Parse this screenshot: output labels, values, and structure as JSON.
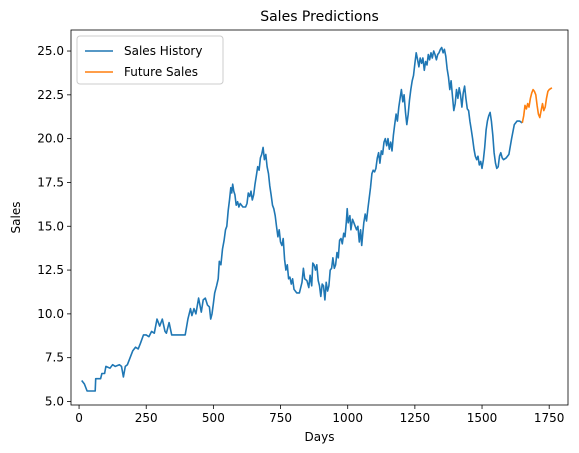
{
  "chart_data": {
    "type": "line",
    "title": "Sales Predictions",
    "xlabel": "Days",
    "ylabel": "Sales",
    "xlim": [
      -30,
      1820
    ],
    "ylim": [
      4.8,
      26.2
    ],
    "xticks": [
      0,
      250,
      500,
      750,
      1000,
      1250,
      1500,
      1750
    ],
    "yticks": [
      5.0,
      7.5,
      10.0,
      12.5,
      15.0,
      17.5,
      20.0,
      22.5,
      25.0
    ],
    "grid": false,
    "legend_position": "top-left",
    "series": [
      {
        "name": "Sales History",
        "color": "#1f77b4",
        "points": [
          [
            10,
            6.2
          ],
          [
            20,
            6.0
          ],
          [
            30,
            5.6
          ],
          [
            60,
            5.6
          ],
          [
            62,
            6.3
          ],
          [
            80,
            6.3
          ],
          [
            85,
            6.6
          ],
          [
            95,
            6.6
          ],
          [
            100,
            7.0
          ],
          [
            115,
            6.9
          ],
          [
            125,
            7.1
          ],
          [
            135,
            7.0
          ],
          [
            150,
            7.1
          ],
          [
            158,
            7.0
          ],
          [
            165,
            6.4
          ],
          [
            172,
            7.0
          ],
          [
            180,
            7.1
          ],
          [
            190,
            7.5
          ],
          [
            200,
            7.9
          ],
          [
            210,
            8.1
          ],
          [
            220,
            8.0
          ],
          [
            228,
            8.3
          ],
          [
            240,
            8.8
          ],
          [
            250,
            8.8
          ],
          [
            260,
            8.7
          ],
          [
            270,
            9.0
          ],
          [
            280,
            8.9
          ],
          [
            290,
            9.7
          ],
          [
            300,
            9.3
          ],
          [
            310,
            9.7
          ],
          [
            320,
            9.0
          ],
          [
            325,
            8.9
          ],
          [
            335,
            9.5
          ],
          [
            345,
            8.8
          ],
          [
            360,
            8.8
          ],
          [
            380,
            8.8
          ],
          [
            395,
            8.8
          ],
          [
            405,
            9.7
          ],
          [
            415,
            10.3
          ],
          [
            420,
            9.9
          ],
          [
            428,
            10.3
          ],
          [
            435,
            10.0
          ],
          [
            445,
            10.9
          ],
          [
            455,
            10.1
          ],
          [
            462,
            10.8
          ],
          [
            470,
            10.9
          ],
          [
            478,
            10.5
          ],
          [
            485,
            10.4
          ],
          [
            490,
            9.7
          ],
          [
            495,
            10.0
          ],
          [
            500,
            10.6
          ],
          [
            505,
            11.2
          ],
          [
            512,
            11.6
          ],
          [
            518,
            12.0
          ],
          [
            522,
            13.0
          ],
          [
            528,
            12.8
          ],
          [
            534,
            13.7
          ],
          [
            540,
            14.2
          ],
          [
            545,
            14.8
          ],
          [
            550,
            15.0
          ],
          [
            555,
            15.9
          ],
          [
            560,
            16.5
          ],
          [
            565,
            17.2
          ],
          [
            568,
            16.9
          ],
          [
            572,
            17.4
          ],
          [
            576,
            17.0
          ],
          [
            580,
            16.8
          ],
          [
            585,
            16.2
          ],
          [
            590,
            16.4
          ],
          [
            595,
            16.1
          ],
          [
            600,
            16.3
          ],
          [
            610,
            16.1
          ],
          [
            620,
            16.1
          ],
          [
            625,
            16.3
          ],
          [
            630,
            16.9
          ],
          [
            635,
            16.7
          ],
          [
            640,
            17.0
          ],
          [
            645,
            16.5
          ],
          [
            650,
            16.8
          ],
          [
            655,
            17.4
          ],
          [
            660,
            17.9
          ],
          [
            665,
            18.4
          ],
          [
            670,
            18.2
          ],
          [
            675,
            18.9
          ],
          [
            680,
            19.1
          ],
          [
            685,
            19.5
          ],
          [
            690,
            18.8
          ],
          [
            695,
            19.1
          ],
          [
            700,
            18.4
          ],
          [
            705,
            18.0
          ],
          [
            710,
            17.3
          ],
          [
            715,
            16.8
          ],
          [
            720,
            16.2
          ],
          [
            725,
            16.0
          ],
          [
            730,
            15.6
          ],
          [
            735,
            15.0
          ],
          [
            740,
            14.4
          ],
          [
            745,
            14.8
          ],
          [
            750,
            14.1
          ],
          [
            755,
            13.9
          ],
          [
            760,
            14.3
          ],
          [
            765,
            13.1
          ],
          [
            770,
            12.5
          ],
          [
            775,
            12.8
          ],
          [
            780,
            12.0
          ],
          [
            785,
            12.1
          ],
          [
            790,
            11.7
          ],
          [
            795,
            12.0
          ],
          [
            800,
            11.4
          ],
          [
            810,
            11.2
          ],
          [
            820,
            11.2
          ],
          [
            830,
            11.8
          ],
          [
            835,
            12.6
          ],
          [
            840,
            12.0
          ],
          [
            848,
            11.9
          ],
          [
            855,
            11.5
          ],
          [
            860,
            12.2
          ],
          [
            866,
            11.6
          ],
          [
            870,
            12.9
          ],
          [
            875,
            12.8
          ],
          [
            880,
            12.5
          ],
          [
            885,
            12.8
          ],
          [
            890,
            11.9
          ],
          [
            895,
            11.6
          ],
          [
            900,
            11.0
          ],
          [
            905,
            11.7
          ],
          [
            910,
            11.6
          ],
          [
            915,
            10.8
          ],
          [
            920,
            11.8
          ],
          [
            925,
            11.3
          ],
          [
            930,
            11.6
          ],
          [
            935,
            12.5
          ],
          [
            940,
            12.6
          ],
          [
            945,
            13.2
          ],
          [
            950,
            12.6
          ],
          [
            955,
            12.8
          ],
          [
            960,
            13.5
          ],
          [
            965,
            13.2
          ],
          [
            970,
            14.2
          ],
          [
            975,
            14.3
          ],
          [
            980,
            14.0
          ],
          [
            985,
            14.6
          ],
          [
            990,
            14.4
          ],
          [
            995,
            15.3
          ],
          [
            998,
            16.0
          ],
          [
            1002,
            15.2
          ],
          [
            1008,
            15.6
          ],
          [
            1012,
            14.8
          ],
          [
            1018,
            15.4
          ],
          [
            1023,
            15.2
          ],
          [
            1028,
            15.0
          ],
          [
            1033,
            14.8
          ],
          [
            1038,
            15.0
          ],
          [
            1043,
            14.1
          ],
          [
            1048,
            14.8
          ],
          [
            1052,
            13.9
          ],
          [
            1056,
            14.6
          ],
          [
            1060,
            15.2
          ],
          [
            1065,
            15.7
          ],
          [
            1070,
            15.3
          ],
          [
            1075,
            16.0
          ],
          [
            1080,
            16.6
          ],
          [
            1085,
            17.2
          ],
          [
            1090,
            18.0
          ],
          [
            1095,
            18.2
          ],
          [
            1100,
            18.1
          ],
          [
            1105,
            18.3
          ],
          [
            1110,
            18.9
          ],
          [
            1115,
            19.2
          ],
          [
            1120,
            18.6
          ],
          [
            1125,
            19.3
          ],
          [
            1130,
            19.1
          ],
          [
            1135,
            19.8
          ],
          [
            1140,
            20.0
          ],
          [
            1145,
            19.6
          ],
          [
            1150,
            20.0
          ],
          [
            1155,
            19.4
          ],
          [
            1160,
            19.8
          ],
          [
            1165,
            19.3
          ],
          [
            1170,
            20.2
          ],
          [
            1175,
            20.8
          ],
          [
            1180,
            21.4
          ],
          [
            1185,
            21.0
          ],
          [
            1190,
            21.8
          ],
          [
            1195,
            22.3
          ],
          [
            1200,
            22.8
          ],
          [
            1205,
            22.1
          ],
          [
            1210,
            22.5
          ],
          [
            1215,
            21.5
          ],
          [
            1220,
            20.8
          ],
          [
            1225,
            21.4
          ],
          [
            1230,
            22.2
          ],
          [
            1235,
            22.8
          ],
          [
            1240,
            23.3
          ],
          [
            1245,
            23.6
          ],
          [
            1250,
            24.3
          ],
          [
            1255,
            24.9
          ],
          [
            1260,
            24.5
          ],
          [
            1265,
            24.1
          ],
          [
            1270,
            24.6
          ],
          [
            1275,
            24.3
          ],
          [
            1280,
            24.6
          ],
          [
            1285,
            23.9
          ],
          [
            1290,
            24.4
          ],
          [
            1295,
            24.2
          ],
          [
            1300,
            24.8
          ],
          [
            1305,
            24.5
          ],
          [
            1310,
            24.9
          ],
          [
            1315,
            24.6
          ],
          [
            1320,
            25.0
          ],
          [
            1325,
            24.8
          ],
          [
            1330,
            24.5
          ],
          [
            1335,
            24.8
          ],
          [
            1340,
            24.9
          ],
          [
            1345,
            25.1
          ],
          [
            1350,
            25.2
          ],
          [
            1355,
            24.9
          ],
          [
            1360,
            25.1
          ],
          [
            1365,
            24.7
          ],
          [
            1370,
            24.0
          ],
          [
            1375,
            23.5
          ],
          [
            1380,
            22.8
          ],
          [
            1385,
            23.3
          ],
          [
            1390,
            22.4
          ],
          [
            1395,
            21.6
          ],
          [
            1400,
            22.0
          ],
          [
            1405,
            22.8
          ],
          [
            1410,
            22.3
          ],
          [
            1415,
            22.9
          ],
          [
            1420,
            22.5
          ],
          [
            1425,
            21.8
          ],
          [
            1430,
            22.6
          ],
          [
            1435,
            23.0
          ],
          [
            1440,
            22.3
          ],
          [
            1445,
            21.7
          ],
          [
            1450,
            21.6
          ],
          [
            1455,
            21.0
          ],
          [
            1460,
            20.5
          ],
          [
            1465,
            20.0
          ],
          [
            1470,
            19.4
          ],
          [
            1475,
            19.0
          ],
          [
            1480,
            18.8
          ],
          [
            1485,
            19.0
          ],
          [
            1490,
            18.5
          ],
          [
            1495,
            18.7
          ],
          [
            1500,
            18.3
          ],
          [
            1505,
            18.8
          ],
          [
            1510,
            19.5
          ],
          [
            1515,
            20.5
          ],
          [
            1520,
            21.0
          ],
          [
            1525,
            21.3
          ],
          [
            1530,
            21.5
          ],
          [
            1535,
            21.0
          ],
          [
            1540,
            20.2
          ],
          [
            1545,
            19.2
          ],
          [
            1550,
            18.6
          ],
          [
            1555,
            18.3
          ],
          [
            1560,
            18.4
          ],
          [
            1565,
            19.0
          ],
          [
            1570,
            19.2
          ],
          [
            1575,
            18.9
          ],
          [
            1580,
            18.8
          ],
          [
            1590,
            18.9
          ],
          [
            1600,
            19.1
          ],
          [
            1610,
            20.0
          ],
          [
            1620,
            20.8
          ],
          [
            1630,
            21.0
          ],
          [
            1640,
            21.0
          ],
          [
            1650,
            20.9
          ]
        ]
      },
      {
        "name": "Future Sales",
        "color": "#ff7f0e",
        "points": [
          [
            1650,
            20.9
          ],
          [
            1655,
            21.3
          ],
          [
            1660,
            21.9
          ],
          [
            1665,
            21.7
          ],
          [
            1670,
            22.0
          ],
          [
            1675,
            21.8
          ],
          [
            1680,
            22.3
          ],
          [
            1685,
            22.6
          ],
          [
            1690,
            22.8
          ],
          [
            1695,
            22.7
          ],
          [
            1700,
            22.5
          ],
          [
            1705,
            21.9
          ],
          [
            1710,
            21.4
          ],
          [
            1715,
            21.2
          ],
          [
            1720,
            21.6
          ],
          [
            1725,
            22.0
          ],
          [
            1730,
            21.6
          ],
          [
            1735,
            21.8
          ],
          [
            1740,
            22.3
          ],
          [
            1745,
            22.7
          ],
          [
            1750,
            22.8
          ],
          [
            1760,
            22.9
          ]
        ]
      }
    ]
  }
}
